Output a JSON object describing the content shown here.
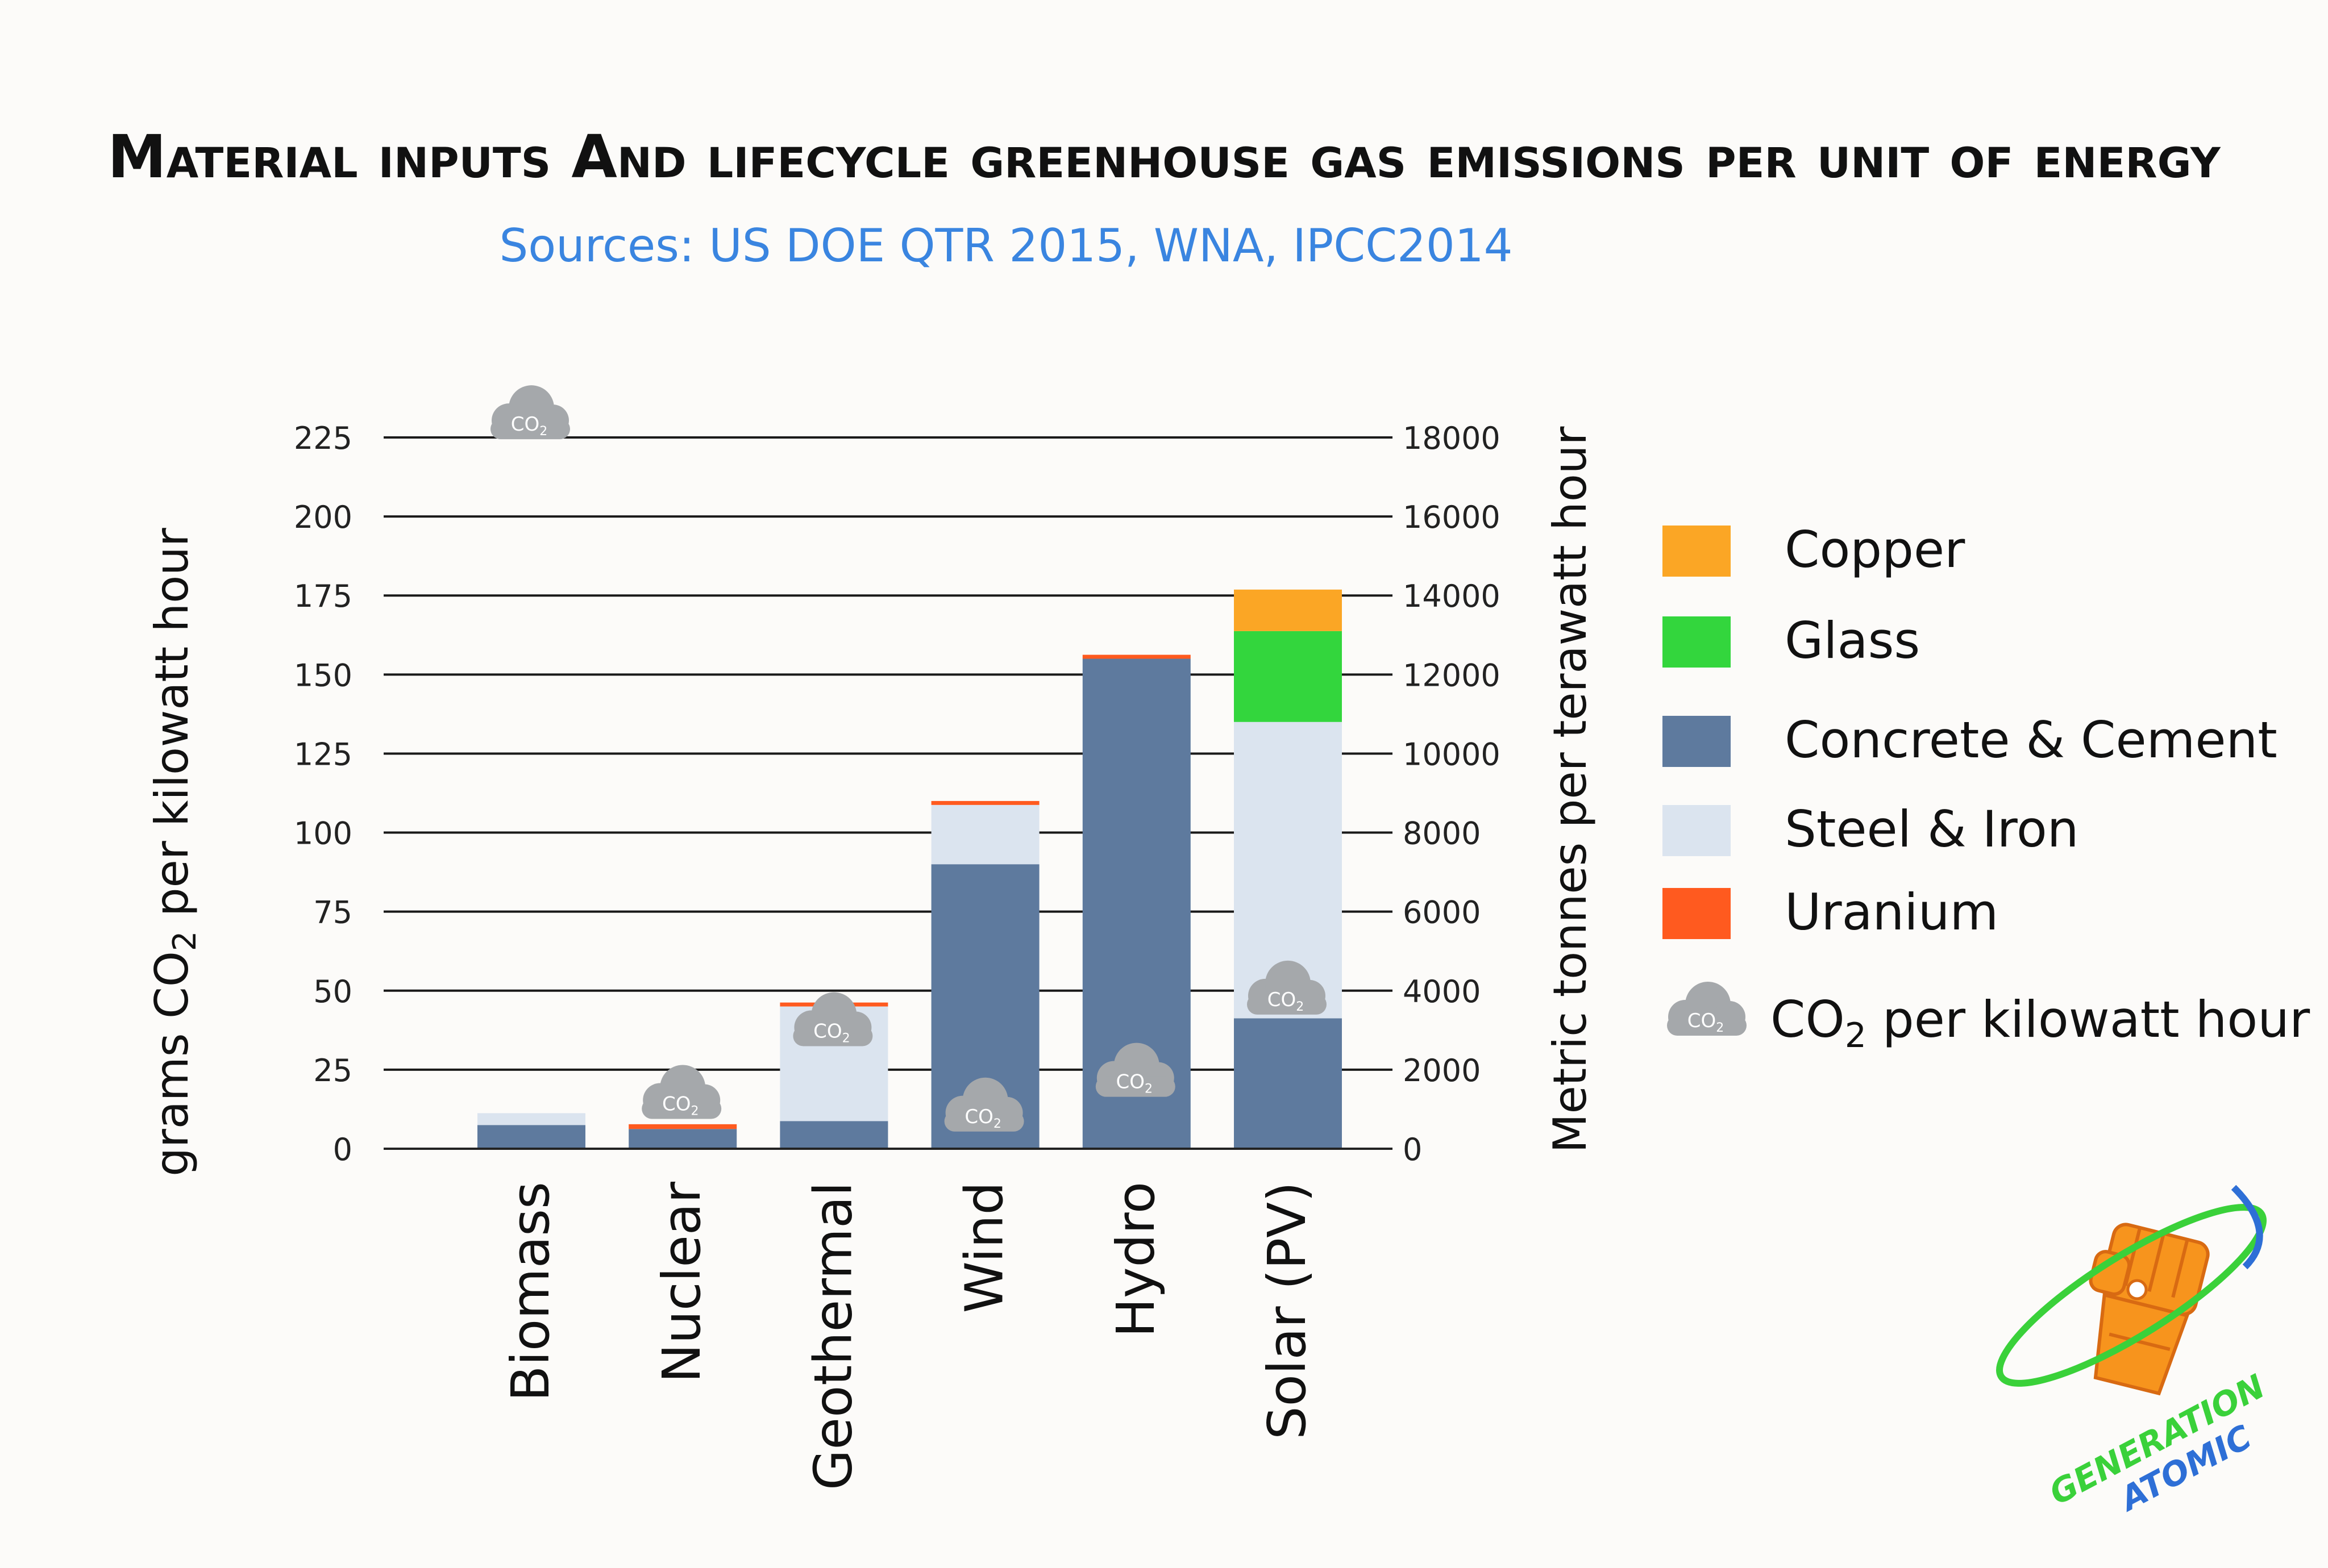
{
  "chart_data": {
    "type": "bar",
    "title": "Material inputs And lifecycle greenhouse gas emissions per unit of energy",
    "subtitle": "Sources: US DOE QTR 2015, WNA, IPCC2014",
    "categories": [
      "Biomass",
      "Nuclear",
      "Geothermal",
      "Wind",
      "Hydro",
      "Solar  (PV)"
    ],
    "y_left": {
      "label_prefix": "grams CO",
      "label_sub": "2",
      "label_suffix": " per kilowatt hour",
      "ticks": [
        "0",
        "25",
        "50",
        "75",
        "100",
        "125",
        "150",
        "175",
        "200",
        "225"
      ],
      "ylim": [
        0,
        225
      ]
    },
    "y_right": {
      "label": "Metric tonnes per terawatt hour",
      "ticks": [
        "0",
        "2000",
        "4000",
        "6000",
        "8000",
        "10000",
        "12000",
        "14000",
        "16000",
        "18000"
      ],
      "ylim": [
        0,
        18000
      ]
    },
    "stacked": true,
    "series": [
      {
        "name": "Concrete & Cement",
        "color": "#5e7a9e",
        "values": [
          600,
          500,
          700,
          7200,
          12400,
          3300
        ]
      },
      {
        "name": "Steel & Iron",
        "color": "#dbe4ef",
        "values": [
          300,
          0,
          2900,
          1500,
          0,
          7500
        ]
      },
      {
        "name": "Uranium",
        "color": "#ff5a1f",
        "values": [
          0,
          120,
          100,
          100,
          100,
          0
        ]
      },
      {
        "name": "Glass",
        "color": "#33d63d",
        "values": [
          0,
          0,
          0,
          0,
          0,
          2300
        ]
      },
      {
        "name": "Copper",
        "color": "#fba625",
        "values": [
          0,
          0,
          0,
          0,
          0,
          1050
        ]
      }
    ],
    "co2_series": {
      "name_prefix": "CO",
      "name_sub": "2",
      "name_suffix": " per kilowatt hour",
      "values": [
        230,
        15,
        38,
        11,
        22,
        48
      ]
    },
    "legend_order": [
      "Copper",
      "Glass",
      "Concrete & Cement",
      "Steel & Iron",
      "Uranium"
    ],
    "legend_placement": "right",
    "grid": true,
    "cloud_label": "CO",
    "cloud_label_sub": "2"
  },
  "logo": {
    "line1": "GENERATION",
    "line2": "ATOMIC",
    "colors": {
      "fist": "#f7941d",
      "fist_dark": "#d86a12",
      "ring_green": "#3ad13a",
      "ring_blue": "#2e6fd6"
    }
  },
  "colors": {
    "title": "#111111",
    "subtitle": "#3a85e0",
    "axis": "#222222",
    "cloud": "#a5a8ab"
  }
}
